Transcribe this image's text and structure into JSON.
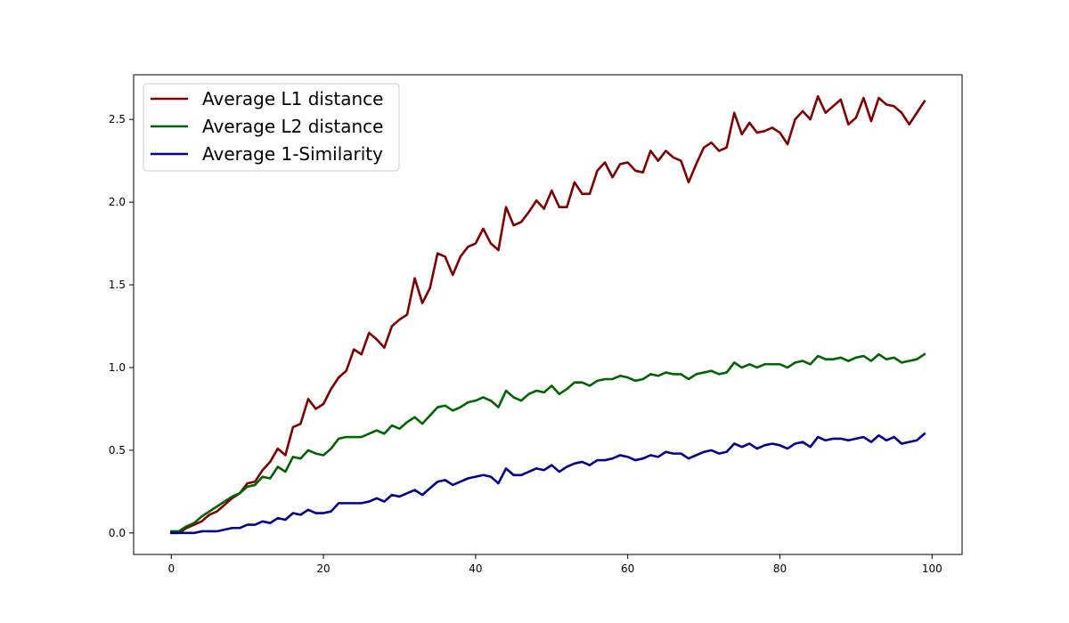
{
  "chart_data": {
    "type": "line",
    "title": "",
    "xlabel": "",
    "ylabel": "",
    "xlim": [
      -4.95,
      103.95
    ],
    "ylim": [
      -0.13,
      2.77
    ],
    "xticks": [
      0,
      20,
      40,
      60,
      80,
      100
    ],
    "yticks": [
      0.0,
      0.5,
      1.0,
      1.5,
      2.0,
      2.5
    ],
    "xtick_labels": [
      "0",
      "20",
      "40",
      "60",
      "80",
      "100"
    ],
    "ytick_labels": [
      "0.0",
      "0.5",
      "1.0",
      "1.5",
      "2.0",
      "2.5"
    ],
    "grid": false,
    "legend_position": "top-left",
    "series": [
      {
        "name": "Average L1 distance",
        "color": "#800000",
        "values": [
          0.0,
          0.0,
          0.03,
          0.05,
          0.07,
          0.11,
          0.13,
          0.17,
          0.21,
          0.24,
          0.3,
          0.31,
          0.38,
          0.43,
          0.51,
          0.47,
          0.64,
          0.66,
          0.81,
          0.75,
          0.78,
          0.87,
          0.94,
          0.98,
          1.11,
          1.08,
          1.21,
          1.17,
          1.12,
          1.25,
          1.29,
          1.32,
          1.54,
          1.39,
          1.48,
          1.69,
          1.67,
          1.56,
          1.67,
          1.73,
          1.75,
          1.84,
          1.75,
          1.71,
          1.97,
          1.86,
          1.88,
          1.94,
          2.01,
          1.96,
          2.07,
          1.97,
          1.97,
          2.12,
          2.05,
          2.05,
          2.19,
          2.24,
          2.15,
          2.23,
          2.24,
          2.19,
          2.18,
          2.31,
          2.25,
          2.31,
          2.27,
          2.25,
          2.12,
          2.23,
          2.33,
          2.36,
          2.31,
          2.33,
          2.54,
          2.41,
          2.48,
          2.42,
          2.43,
          2.45,
          2.42,
          2.35,
          2.5,
          2.55,
          2.5,
          2.64,
          2.54,
          2.58,
          2.62,
          2.47,
          2.51,
          2.63,
          2.49,
          2.63,
          2.59,
          2.58,
          2.54,
          2.47,
          2.54,
          2.61
        ]
      },
      {
        "name": "Average L2 distance",
        "color": "#006400",
        "values": [
          0.01,
          0.01,
          0.04,
          0.06,
          0.1,
          0.13,
          0.16,
          0.19,
          0.22,
          0.24,
          0.28,
          0.29,
          0.34,
          0.33,
          0.4,
          0.37,
          0.46,
          0.45,
          0.5,
          0.48,
          0.47,
          0.51,
          0.57,
          0.58,
          0.58,
          0.58,
          0.6,
          0.62,
          0.6,
          0.65,
          0.63,
          0.67,
          0.7,
          0.66,
          0.71,
          0.76,
          0.77,
          0.74,
          0.76,
          0.79,
          0.8,
          0.82,
          0.8,
          0.76,
          0.86,
          0.82,
          0.8,
          0.84,
          0.86,
          0.85,
          0.89,
          0.84,
          0.87,
          0.91,
          0.91,
          0.89,
          0.92,
          0.93,
          0.93,
          0.95,
          0.94,
          0.92,
          0.93,
          0.96,
          0.95,
          0.97,
          0.96,
          0.96,
          0.93,
          0.96,
          0.97,
          0.98,
          0.96,
          0.97,
          1.03,
          1.0,
          1.02,
          1.0,
          1.02,
          1.02,
          1.02,
          1.0,
          1.03,
          1.04,
          1.02,
          1.07,
          1.05,
          1.05,
          1.06,
          1.04,
          1.06,
          1.07,
          1.04,
          1.08,
          1.05,
          1.06,
          1.03,
          1.04,
          1.05,
          1.08
        ]
      },
      {
        "name": "Average 1-Similarity",
        "color": "#00008b",
        "values": [
          0.0,
          0.0,
          0.0,
          0.0,
          0.01,
          0.01,
          0.01,
          0.02,
          0.03,
          0.03,
          0.05,
          0.05,
          0.07,
          0.06,
          0.09,
          0.08,
          0.12,
          0.11,
          0.14,
          0.12,
          0.12,
          0.13,
          0.18,
          0.18,
          0.18,
          0.18,
          0.19,
          0.21,
          0.19,
          0.23,
          0.22,
          0.24,
          0.26,
          0.23,
          0.27,
          0.31,
          0.32,
          0.29,
          0.31,
          0.33,
          0.34,
          0.35,
          0.34,
          0.3,
          0.39,
          0.35,
          0.35,
          0.37,
          0.39,
          0.38,
          0.41,
          0.37,
          0.4,
          0.42,
          0.43,
          0.41,
          0.44,
          0.44,
          0.45,
          0.47,
          0.46,
          0.44,
          0.45,
          0.47,
          0.46,
          0.49,
          0.48,
          0.48,
          0.45,
          0.47,
          0.49,
          0.5,
          0.48,
          0.49,
          0.54,
          0.52,
          0.54,
          0.51,
          0.53,
          0.54,
          0.53,
          0.51,
          0.54,
          0.55,
          0.52,
          0.58,
          0.56,
          0.57,
          0.57,
          0.56,
          0.57,
          0.58,
          0.55,
          0.59,
          0.56,
          0.58,
          0.54,
          0.55,
          0.56,
          0.6
        ]
      }
    ]
  }
}
